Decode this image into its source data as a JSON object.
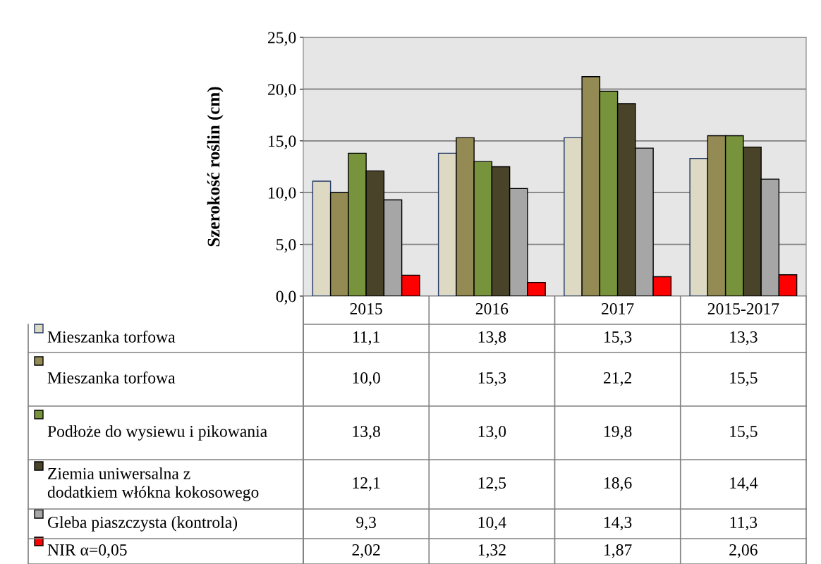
{
  "chart_data": {
    "type": "bar",
    "ylabel": "Szerokość roślin (cm)",
    "categories": [
      "2015",
      "2016",
      "2017",
      "2015-2017"
    ],
    "ylim": [
      0,
      25
    ],
    "yticks": [
      {
        "value": 0,
        "label": "0,0"
      },
      {
        "value": 5,
        "label": "5,0"
      },
      {
        "value": 10,
        "label": "10,0"
      },
      {
        "value": 15,
        "label": "15,0"
      },
      {
        "value": 20,
        "label": "20,0"
      },
      {
        "value": 25,
        "label": "25,0"
      }
    ],
    "grid": "y",
    "legend": "bottom",
    "series": [
      {
        "name": "Mieszanka torfowa",
        "color": "#ddd9c3",
        "values": [
          11.1,
          13.8,
          15.3,
          13.3
        ],
        "value_labels": [
          "11,1",
          "13,8",
          "15,3",
          "13,3"
        ]
      },
      {
        "name": "Mieszanka torfowa",
        "color": "#948a54",
        "values": [
          10.0,
          15.3,
          21.2,
          15.5
        ],
        "value_labels": [
          "10,0",
          "15,3",
          "21,2",
          "15,5"
        ]
      },
      {
        "name": "Podłoże do wysiewu i pikowania",
        "color": "#77933c",
        "values": [
          13.8,
          13.0,
          19.8,
          15.5
        ],
        "value_labels": [
          "13,8",
          "13,0",
          "19,8",
          "15,5"
        ]
      },
      {
        "name": "Ziemia uniwersalna z dodatkiem włókna kokosowego",
        "color": "#494429",
        "values": [
          12.1,
          12.5,
          18.6,
          14.4
        ],
        "value_labels": [
          "12,1",
          "12,5",
          "18,6",
          "14,4"
        ]
      },
      {
        "name": "Gleba piaszczysta (kontrola)",
        "color": "#a6a6a6",
        "values": [
          9.3,
          10.4,
          14.3,
          11.3
        ],
        "value_labels": [
          "9,3",
          "10,4",
          "14,3",
          "11,3"
        ]
      },
      {
        "name": "NIR α=0,05",
        "color": "#ff0000",
        "values": [
          2.02,
          1.32,
          1.87,
          2.06
        ],
        "value_labels": [
          "2,02",
          "1,32",
          "1,87",
          "2,06"
        ]
      }
    ]
  }
}
